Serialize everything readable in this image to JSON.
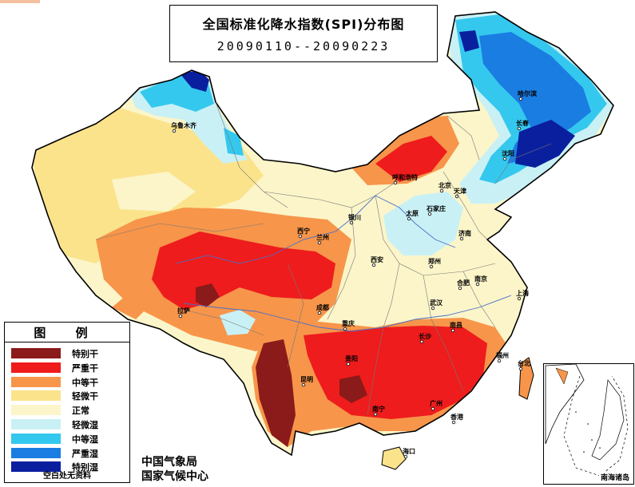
{
  "title": "全国标准化降水指数(SPI)分布图",
  "period": "20090110--20090223",
  "legend": {
    "heading": "图  例",
    "items": [
      {
        "label": "特别干",
        "color": "#8b1a1a"
      },
      {
        "label": "严重干",
        "color": "#ee1c1c"
      },
      {
        "label": "中等干",
        "color": "#f7954a"
      },
      {
        "label": "轻微干",
        "color": "#fbe38c"
      },
      {
        "label": "正常",
        "color": "#fbf5c9"
      },
      {
        "label": "轻微湿",
        "color": "#c9f1f5"
      },
      {
        "label": "中等湿",
        "color": "#35c8ee"
      },
      {
        "label": "严重湿",
        "color": "#1a7de2"
      },
      {
        "label": "特别湿",
        "color": "#0a1f9e"
      }
    ],
    "note": "空白处无资料"
  },
  "agency": {
    "line1": "中国气象局",
    "line2": "国家气候中心"
  },
  "inset_label": "南海诸岛",
  "cities": [
    {
      "name": "乌鲁木齐"
    },
    {
      "name": "哈尔滨"
    },
    {
      "name": "长春"
    },
    {
      "name": "沈阳"
    },
    {
      "name": "呼和浩特"
    },
    {
      "name": "北京"
    },
    {
      "name": "天津"
    },
    {
      "name": "石家庄"
    },
    {
      "name": "太原"
    },
    {
      "name": "济南"
    },
    {
      "name": "银川"
    },
    {
      "name": "西宁"
    },
    {
      "name": "兰州"
    },
    {
      "name": "西安"
    },
    {
      "name": "郑州"
    },
    {
      "name": "合肥"
    },
    {
      "name": "南京"
    },
    {
      "name": "上海"
    },
    {
      "name": "武汉"
    },
    {
      "name": "拉萨"
    },
    {
      "name": "成都"
    },
    {
      "name": "重庆"
    },
    {
      "name": "长沙"
    },
    {
      "name": "南昌"
    },
    {
      "name": "福州"
    },
    {
      "name": "台北"
    },
    {
      "name": "贵阳"
    },
    {
      "name": "昆明"
    },
    {
      "name": "南宁"
    },
    {
      "name": "广州"
    },
    {
      "name": "香港"
    },
    {
      "name": "海口"
    }
  ]
}
